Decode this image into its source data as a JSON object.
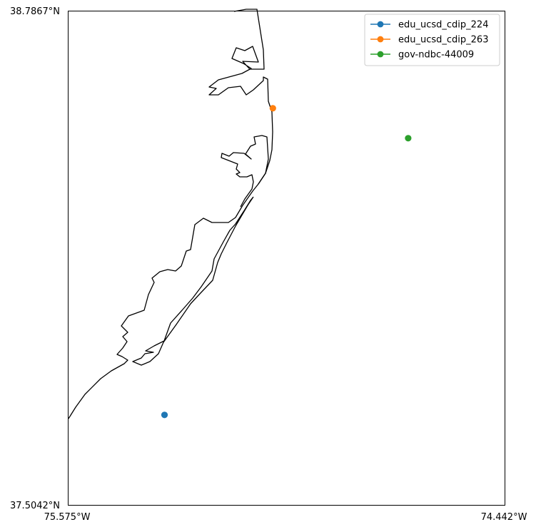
{
  "chart_data": {
    "type": "scatter",
    "title": "",
    "xlabel": "",
    "ylabel": "",
    "xlim": [
      -75.575,
      -74.442
    ],
    "ylim": [
      37.5042,
      38.7867
    ],
    "grid": false,
    "legend_position": "top-right",
    "axis_labels": {
      "y_top": "38.7867°N",
      "y_bottom": "37.5042°N",
      "x_left": "75.575°W",
      "x_right": "74.442°W"
    },
    "series": [
      {
        "name": "edu_ucsd_cdip_224",
        "color": "#1f77b4",
        "x": [
          -75.325
        ],
        "y": [
          37.7386
        ]
      },
      {
        "name": "edu_ucsd_cdip_263",
        "color": "#ff7f0e",
        "x": [
          -75.044
        ],
        "y": [
          38.5345
        ]
      },
      {
        "name": "gov-ndbc-44009",
        "color": "#2ca02c",
        "x": [
          -74.693
        ],
        "y": [
          38.4568
        ]
      }
    ],
    "coastline_color": "#000000"
  }
}
